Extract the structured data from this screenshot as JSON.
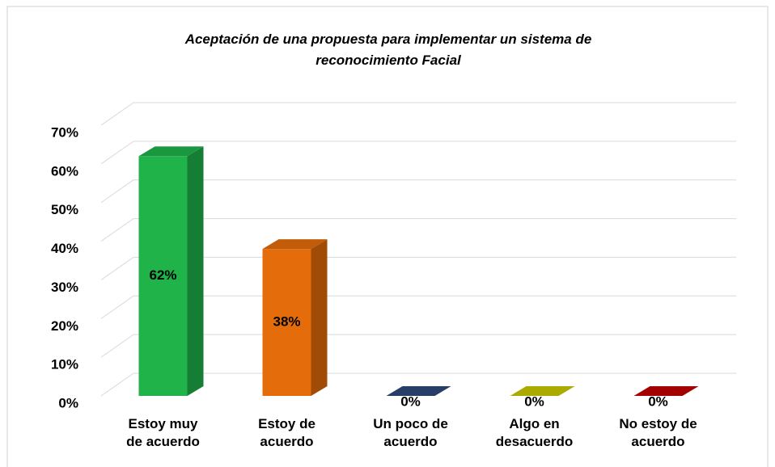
{
  "chart_data": {
    "type": "bar3d",
    "title": "Aceptación de una propuesta para implementar un sistema de\nreconocimiento Facial",
    "categories": [
      "Estoy muy\nde acuerdo",
      "Estoy de\nacuerdo",
      "Un poco de\nacuerdo",
      "Algo en\ndesacuerdo",
      "No estoy de\nacuerdo"
    ],
    "values": [
      62,
      38,
      0,
      0,
      0
    ],
    "value_labels": [
      "62%",
      "38%",
      "0%",
      "0%",
      "0%"
    ],
    "colors": [
      "#1fb34a",
      "#e46c0a",
      "#2e4a7a",
      "#c8c800",
      "#c00000"
    ],
    "ylim": [
      0,
      70
    ],
    "yticks": [
      {
        "value": 0,
        "label": "0%"
      },
      {
        "value": 10,
        "label": "10%"
      },
      {
        "value": 20,
        "label": "20%"
      },
      {
        "value": 30,
        "label": "30%"
      },
      {
        "value": 40,
        "label": "40%"
      },
      {
        "value": 50,
        "label": "50%"
      },
      {
        "value": 60,
        "label": "60%"
      },
      {
        "value": 70,
        "label": "70%"
      }
    ],
    "grid": true
  }
}
